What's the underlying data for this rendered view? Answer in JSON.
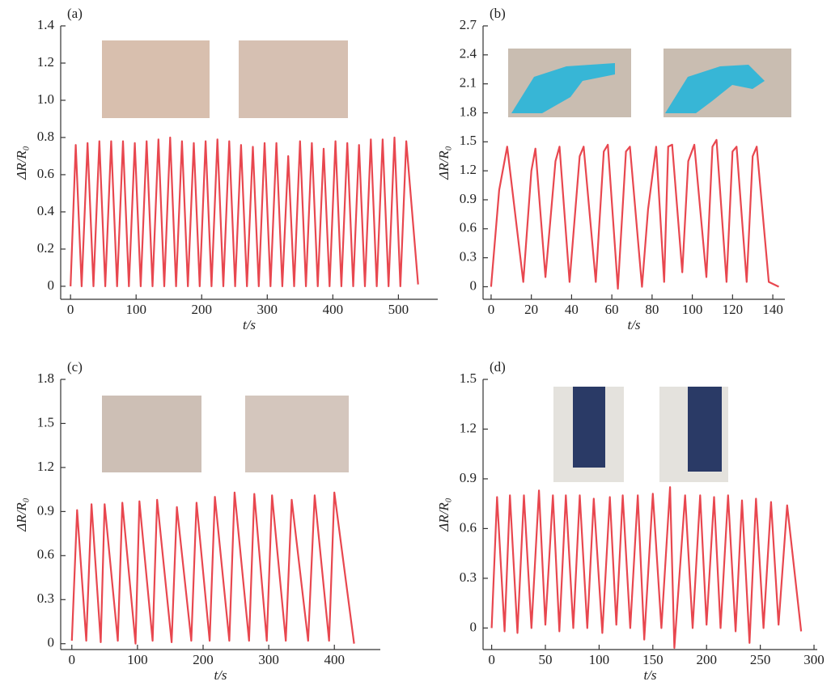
{
  "chart_data": [
    {
      "type": "line",
      "label": "(a)",
      "x_label": "t/s",
      "y_label": "ΔR/R₀",
      "color": "#e8474f",
      "xlim": [
        -15,
        560
      ],
      "ylim": [
        -0.07,
        1.4
      ],
      "xticks": [
        0,
        100,
        200,
        300,
        400,
        500
      ],
      "yticks": [
        0,
        0.2,
        0.4,
        0.6,
        0.8,
        {
          "value": 1,
          "label": "1.0"
        },
        1.2,
        1.4
      ],
      "x": [
        0,
        8,
        17,
        26,
        35,
        44,
        53,
        62,
        71,
        80,
        89,
        98,
        107,
        116,
        125,
        134,
        143,
        152,
        161,
        170,
        179,
        188,
        197,
        206,
        215,
        224,
        233,
        242,
        251,
        260,
        269,
        278,
        287,
        296,
        305,
        314,
        323,
        332,
        341,
        350,
        359,
        368,
        377,
        386,
        395,
        404,
        413,
        422,
        431,
        440,
        449,
        458,
        467,
        476,
        485,
        494,
        503,
        512,
        530
      ],
      "values": [
        0,
        0.76,
        0,
        0.77,
        0,
        0.78,
        0,
        0.78,
        0,
        0.78,
        0,
        0.77,
        0,
        0.78,
        0,
        0.79,
        0,
        0.8,
        0,
        0.78,
        0,
        0.77,
        0,
        0.78,
        0,
        0.79,
        0,
        0.78,
        0,
        0.76,
        0,
        0.75,
        0,
        0.77,
        0,
        0.77,
        0,
        0.7,
        0,
        0.78,
        0,
        0.77,
        0,
        0.74,
        0,
        0.78,
        0,
        0.77,
        0,
        0.76,
        0,
        0.79,
        0,
        0.79,
        0,
        0.8,
        0,
        0.78,
        0.01
      ]
    },
    {
      "type": "line",
      "label": "(b)",
      "x_label": "t/s",
      "y_label": "ΔR/R₀",
      "color": "#e8474f",
      "xlim": [
        -4,
        146
      ],
      "ylim": [
        -0.13,
        2.7
      ],
      "xticks": [
        0,
        20,
        40,
        60,
        80,
        100,
        120,
        140
      ],
      "yticks": [
        0,
        0.3,
        0.6,
        0.9,
        1.2,
        1.5,
        1.8,
        2.1,
        2.4,
        2.7
      ],
      "x": [
        0,
        4,
        8,
        16,
        20,
        22,
        27,
        32,
        34,
        39,
        44,
        46,
        52,
        56,
        58,
        63,
        67,
        69,
        75,
        78,
        82,
        86,
        88,
        90,
        95,
        98,
        101,
        107,
        110,
        112,
        117,
        120,
        122,
        127,
        130,
        132,
        138,
        143
      ],
      "values": [
        0,
        1.0,
        1.45,
        0.05,
        1.2,
        1.43,
        0.1,
        1.3,
        1.45,
        0.05,
        1.35,
        1.45,
        0.05,
        1.4,
        1.47,
        -0.02,
        1.4,
        1.45,
        0,
        0.8,
        1.45,
        0.05,
        1.45,
        1.47,
        0.15,
        1.3,
        1.47,
        0.1,
        1.45,
        1.52,
        0.05,
        1.4,
        1.45,
        0.05,
        1.35,
        1.45,
        0.05,
        0
      ]
    },
    {
      "type": "line",
      "label": "(c)",
      "x_label": "t/s",
      "y_label": "ΔR/R₀",
      "color": "#e8474f",
      "xlim": [
        -17,
        470
      ],
      "ylim": [
        -0.04,
        1.8
      ],
      "xticks": [
        0,
        100,
        200,
        300,
        400
      ],
      "yticks": [
        0,
        0.3,
        0.6,
        0.9,
        1.2,
        1.5,
        1.8
      ],
      "x": [
        0,
        8,
        22,
        30,
        44,
        50,
        70,
        77,
        97,
        103,
        123,
        130,
        152,
        160,
        182,
        190,
        210,
        218,
        240,
        248,
        270,
        278,
        297,
        305,
        326,
        335,
        360,
        370,
        392,
        400,
        430
      ],
      "values": [
        0.02,
        0.91,
        0.02,
        0.95,
        0.01,
        0.95,
        0.02,
        0.96,
        0,
        0.97,
        0.02,
        0.98,
        0.01,
        0.93,
        0.02,
        0.96,
        0.02,
        1.0,
        0.02,
        1.03,
        0.02,
        1.02,
        0.02,
        1.01,
        0.02,
        0.98,
        0.02,
        1.01,
        0.02,
        1.03,
        0
      ]
    },
    {
      "type": "line",
      "label": "(d)",
      "x_label": "t/s",
      "y_label": "ΔR/R₀",
      "color": "#e8474f",
      "xlim": [
        -8,
        303
      ],
      "ylim": [
        -0.13,
        1.5
      ],
      "xticks": [
        0,
        50,
        100,
        150,
        200,
        250,
        300
      ],
      "yticks": [
        0,
        0.3,
        0.6,
        0.9,
        1.2,
        1.5
      ],
      "x": [
        0,
        5,
        12,
        17,
        24,
        30,
        37,
        44,
        50,
        57,
        63,
        69,
        76,
        82,
        89,
        95,
        103,
        110,
        116,
        122,
        129,
        136,
        142,
        150,
        158,
        166,
        170,
        180,
        187,
        194,
        200,
        207,
        213,
        220,
        227,
        233,
        240,
        246,
        253,
        260,
        267,
        275,
        288
      ],
      "values": [
        0,
        0.79,
        -0.02,
        0.8,
        -0.03,
        0.8,
        0,
        0.83,
        0.02,
        0.8,
        -0.02,
        0.8,
        0,
        0.8,
        0,
        0.78,
        -0.03,
        0.79,
        0.02,
        0.8,
        0,
        0.8,
        -0.07,
        0.81,
        0,
        0.85,
        -0.12,
        0.8,
        0,
        0.8,
        0.02,
        0.79,
        0,
        0.8,
        -0.02,
        0.77,
        -0.09,
        0.78,
        0,
        0.76,
        0.02,
        0.74,
        -0.02
      ]
    }
  ]
}
